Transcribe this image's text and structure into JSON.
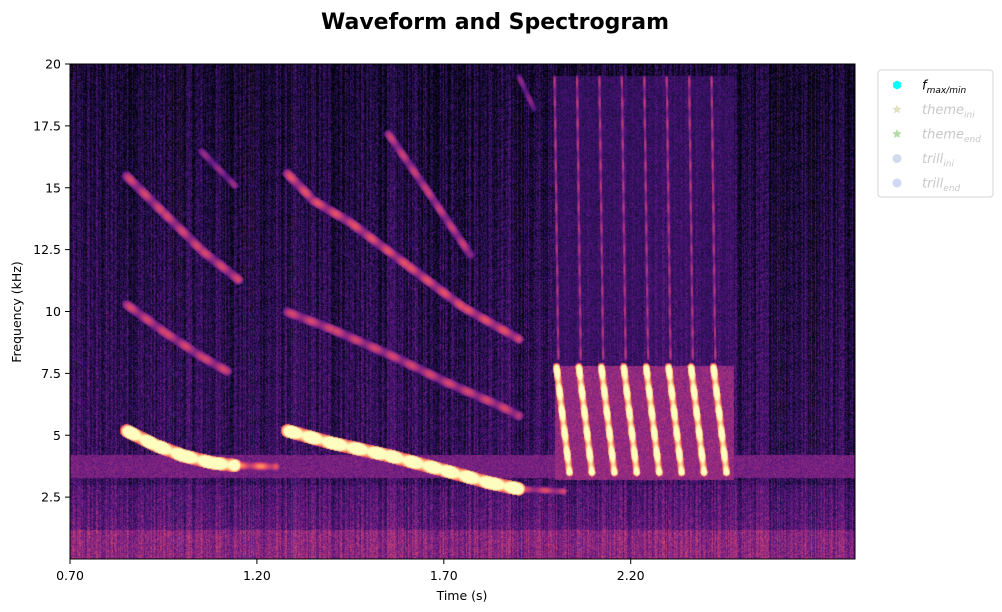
{
  "chart_data": {
    "type": "heatmap",
    "title": "Waveform and Spectrogram",
    "xlabel": "Time (s)",
    "ylabel": "Frequency (kHz)",
    "xlim": [
      0.7,
      2.8
    ],
    "ylim": [
      0,
      20
    ],
    "x_ticks": [
      {
        "value": 0.7,
        "label": "0.70"
      },
      {
        "value": 1.2,
        "label": "1.20"
      },
      {
        "value": 1.7,
        "label": "1.70"
      },
      {
        "value": 2.2,
        "label": "2.20"
      }
    ],
    "y_ticks": [
      {
        "value": 2.5,
        "label": "2.5"
      },
      {
        "value": 5,
        "label": "5"
      },
      {
        "value": 7.5,
        "label": "7.5"
      },
      {
        "value": 10,
        "label": "10"
      },
      {
        "value": 12.5,
        "label": "12.5"
      },
      {
        "value": 15,
        "label": "15"
      },
      {
        "value": 17.5,
        "label": "17.5"
      },
      {
        "value": 20,
        "label": "20"
      }
    ],
    "colormap": "magma",
    "grid": false,
    "legend": {
      "placement": "outside-top-right",
      "entries": [
        {
          "base": "f",
          "sub": "max/min",
          "marker": "hexagon",
          "color": "#00ffff",
          "faded": false
        },
        {
          "base": "theme",
          "sub": "ini",
          "marker": "star",
          "color": "#e3e0c4",
          "faded": true
        },
        {
          "base": "theme",
          "sub": "end",
          "marker": "star",
          "color": "#b5d9a7",
          "faded": true
        },
        {
          "base": "trill",
          "sub": "ini",
          "marker": "circle",
          "color": "#c7d1e8",
          "faded": true
        },
        {
          "base": "trill",
          "sub": "end",
          "marker": "circle",
          "color": "#c6cef0",
          "faded": true
        }
      ]
    },
    "traces": [
      {
        "x": [
          0.85,
          0.93,
          1.0,
          1.08,
          1.14
        ],
        "y": [
          5.2,
          4.6,
          4.2,
          3.9,
          3.8
        ],
        "intensity": 1.0,
        "width_khz": 0.55
      },
      {
        "x": [
          1.14,
          1.25
        ],
        "y": [
          3.8,
          3.75
        ],
        "intensity": 0.55,
        "width_khz": 0.35
      },
      {
        "x": [
          0.85,
          0.95,
          1.05,
          1.15
        ],
        "y": [
          15.5,
          14.0,
          12.5,
          11.3
        ],
        "intensity": 0.42,
        "width_khz": 0.4
      },
      {
        "x": [
          0.85,
          0.95,
          1.05,
          1.12
        ],
        "y": [
          10.3,
          9.2,
          8.2,
          7.6
        ],
        "intensity": 0.42,
        "width_khz": 0.4
      },
      {
        "x": [
          1.05,
          1.14
        ],
        "y": [
          16.5,
          15.1
        ],
        "intensity": 0.32,
        "width_khz": 0.3
      },
      {
        "x": [
          1.28,
          1.4,
          1.55,
          1.7,
          1.82,
          1.9
        ],
        "y": [
          5.2,
          4.7,
          4.2,
          3.6,
          3.1,
          2.85
        ],
        "intensity": 1.0,
        "width_khz": 0.55
      },
      {
        "x": [
          1.28,
          1.35,
          1.45,
          1.6,
          1.75,
          1.9
        ],
        "y": [
          15.6,
          14.5,
          13.6,
          11.9,
          10.2,
          8.9
        ],
        "intensity": 0.45,
        "width_khz": 0.4
      },
      {
        "x": [
          1.28,
          1.4,
          1.55,
          1.7,
          1.85,
          1.9
        ],
        "y": [
          10.0,
          9.3,
          8.3,
          7.2,
          6.2,
          5.8
        ],
        "intensity": 0.42,
        "width_khz": 0.4
      },
      {
        "x": [
          1.55,
          1.65,
          1.77
        ],
        "y": [
          17.2,
          15.0,
          12.3
        ],
        "intensity": 0.4,
        "width_khz": 0.35
      },
      {
        "x": [
          1.9,
          2.02
        ],
        "y": [
          2.85,
          2.75
        ],
        "intensity": 0.45,
        "width_khz": 0.3
      },
      {
        "x": [
          1.9,
          1.94
        ],
        "y": [
          19.5,
          18.2
        ],
        "intensity": 0.3,
        "width_khz": 0.25
      }
    ],
    "trill": {
      "starts": [
        2.0,
        2.06,
        2.12,
        2.18,
        2.24,
        2.3,
        2.36,
        2.42
      ],
      "width_s": 0.035,
      "f_high": 7.8,
      "f_low": 3.5,
      "harmonic_high": 16.0,
      "intensity": 0.95
    },
    "background_band": {
      "f_low": 3.3,
      "f_high": 4.2,
      "x_from": 0.7,
      "x_to": 2.8,
      "intensity": 0.35
    }
  }
}
